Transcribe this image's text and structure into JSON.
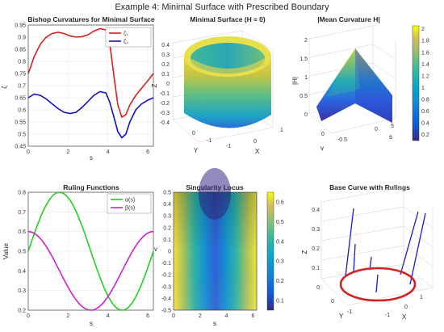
{
  "figure": {
    "suptitle": "Example 4: Minimal Surface with Prescribed Boundary"
  },
  "colors": {
    "red": "#d62020",
    "blue": "#1010c0",
    "green": "#20d020",
    "magenta": "#d020d0",
    "grid": "#e6e6e6",
    "axis": "#262626"
  },
  "chart_data": [
    {
      "id": "bishop",
      "type": "line",
      "title": "Bishop Curvatures for Minimal Surface",
      "xlabel": "s",
      "ylabel": "ζ",
      "xlim": [
        0,
        6.283
      ],
      "ylim": [
        0.45,
        0.95
      ],
      "xticks": [
        "0",
        "2",
        "4",
        "6"
      ],
      "yticks": [
        "0.45",
        "0.5",
        "0.55",
        "0.6",
        "0.65",
        "0.7",
        "0.75",
        "0.8",
        "0.85",
        "0.9",
        "0.95"
      ],
      "grid": true,
      "legend": "top-right",
      "series": [
        {
          "name": "ζ₁",
          "color": "red",
          "x": [
            0,
            0.3,
            0.6,
            0.9,
            1.2,
            1.5,
            1.8,
            2.1,
            2.4,
            2.7,
            3.0,
            3.3,
            3.6,
            3.9,
            4.1,
            4.3,
            4.5,
            4.7,
            4.9,
            5.1,
            5.4,
            5.7,
            6.0,
            6.283
          ],
          "y": [
            0.75,
            0.82,
            0.87,
            0.9,
            0.915,
            0.92,
            0.915,
            0.905,
            0.9,
            0.902,
            0.91,
            0.925,
            0.935,
            0.93,
            0.87,
            0.74,
            0.62,
            0.57,
            0.58,
            0.62,
            0.66,
            0.69,
            0.72,
            0.75
          ]
        },
        {
          "name": "ζ₂",
          "color": "blue",
          "x": [
            0,
            0.3,
            0.6,
            0.9,
            1.2,
            1.5,
            1.8,
            2.1,
            2.4,
            2.7,
            3.0,
            3.3,
            3.6,
            3.9,
            4.1,
            4.3,
            4.5,
            4.7,
            4.9,
            5.1,
            5.4,
            5.7,
            6.0,
            6.283
          ],
          "y": [
            0.65,
            0.665,
            0.66,
            0.645,
            0.625,
            0.605,
            0.59,
            0.585,
            0.59,
            0.61,
            0.635,
            0.66,
            0.675,
            0.67,
            0.63,
            0.57,
            0.51,
            0.485,
            0.5,
            0.55,
            0.6,
            0.625,
            0.64,
            0.65
          ]
        }
      ]
    },
    {
      "id": "surface",
      "type": "surface3d",
      "title": "Minimal Surface (H ≈ 0)",
      "xlabel": "X",
      "ylabel": "Y",
      "zlabel": "Z",
      "zticks": [
        "-0.4",
        "-0.3",
        "-0.2",
        "-0.1",
        "0",
        "0.1",
        "0.2",
        "0.3",
        "0.4"
      ],
      "xticks": [
        "-1",
        "0",
        "1"
      ],
      "yticks": [
        "-1",
        "0"
      ]
    },
    {
      "id": "meancurv",
      "type": "surface3d",
      "title": "|Mean Curvature H|",
      "xlabel": "s",
      "ylabel": "v",
      "zlabel": "|H|",
      "zticks": [
        "0",
        "0.5",
        "1",
        "1.5",
        "2"
      ],
      "xticks": [
        "0",
        "5"
      ],
      "yticks": [
        "-0.5",
        "0"
      ],
      "colorbar": {
        "min": 0.1,
        "max": 2.05,
        "ticks": [
          "0.2",
          "0.4",
          "0.6",
          "0.8",
          "1",
          "1.2",
          "1.4",
          "1.6",
          "1.8",
          "2"
        ]
      }
    },
    {
      "id": "ruling",
      "type": "line",
      "title": "Ruling Functions",
      "xlabel": "s",
      "ylabel": "Value",
      "xlim": [
        0,
        6.283
      ],
      "ylim": [
        0.2,
        0.8
      ],
      "xticks": [
        "0",
        "2",
        "4",
        "6"
      ],
      "yticks": [
        "0.2",
        "0.3",
        "0.4",
        "0.5",
        "0.6",
        "0.7",
        "0.8"
      ],
      "grid": true,
      "legend": "top-right",
      "series": [
        {
          "name": "α(s)",
          "color": "green",
          "func": "0.5+0.3*sin(s)"
        },
        {
          "name": "β(s)",
          "color": "magenta",
          "func": "0.4+0.2*cos(s)"
        }
      ]
    },
    {
      "id": "singular",
      "type": "heatmap",
      "title": "Singularity Locus",
      "xlabel": "s",
      "ylabel": "v",
      "xlim": [
        0,
        6.283
      ],
      "ylim": [
        -0.5,
        0.5
      ],
      "xticks": [
        "0",
        "2",
        "4",
        "6"
      ],
      "yticks": [
        "-0.5",
        "-0.4",
        "-0.3",
        "-0.2",
        "-0.1",
        "0",
        "0.1",
        "0.2",
        "0.3",
        "0.4",
        "0.5"
      ],
      "colorbar": {
        "min": 0.05,
        "max": 0.65,
        "ticks": [
          "0.1",
          "0.2",
          "0.3",
          "0.4",
          "0.5",
          "0.6"
        ]
      }
    },
    {
      "id": "basecurve",
      "type": "line3d",
      "title": "Base Curve with Rulings",
      "xlabel": "X",
      "ylabel": "Y",
      "zlabel": "Z",
      "zticks": [
        "0",
        "0.1",
        "0.2",
        "0.3",
        "0.4"
      ],
      "xticks": [
        "-1",
        "0",
        "1"
      ],
      "yticks": [
        "0",
        "-1"
      ]
    }
  ]
}
